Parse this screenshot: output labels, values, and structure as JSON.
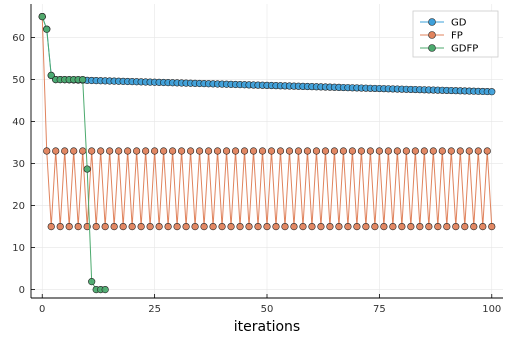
{
  "chart_data": {
    "type": "line",
    "title": "",
    "xlabel": "iterations",
    "ylabel": "",
    "xlim": [
      -2.5,
      102.5
    ],
    "ylim": [
      -2,
      68
    ],
    "xticks": [
      0,
      25,
      50,
      75,
      100
    ],
    "yticks": [
      0,
      10,
      20,
      30,
      40,
      50,
      60
    ],
    "grid": true,
    "legend_position": "top-right",
    "series": [
      {
        "name": "GD",
        "color": "#3ea0da",
        "marker": "circle",
        "x_range": [
          0,
          100
        ],
        "y_values": [
          65,
          62,
          51,
          50,
          50,
          49.97,
          49.94,
          49.91,
          49.88,
          49.85,
          49.82,
          49.79,
          49.76,
          49.73,
          49.7,
          49.67,
          49.64,
          49.61,
          49.58,
          49.55,
          49.52,
          49.49,
          49.46,
          49.43,
          49.4,
          49.37,
          49.34,
          49.31,
          49.28,
          49.25,
          49.22,
          49.19,
          49.16,
          49.13,
          49.1,
          49.07,
          49.04,
          49.01,
          48.98,
          48.95,
          48.92,
          48.89,
          48.86,
          48.83,
          48.8,
          48.77,
          48.74,
          48.71,
          48.68,
          48.65,
          48.62,
          48.59,
          48.56,
          48.53,
          48.5,
          48.47,
          48.44,
          48.41,
          48.38,
          48.35,
          48.32,
          48.29,
          48.26,
          48.23,
          48.2,
          48.17,
          48.14,
          48.11,
          48.08,
          48.05,
          48.02,
          47.99,
          47.96,
          47.93,
          47.9,
          47.87,
          47.84,
          47.81,
          47.78,
          47.75,
          47.72,
          47.69,
          47.66,
          47.63,
          47.6,
          47.57,
          47.54,
          47.51,
          47.48,
          47.45,
          47.42,
          47.39,
          47.36,
          47.33,
          47.3,
          47.27,
          47.24,
          47.21,
          47.18,
          47.15,
          47.12
        ]
      },
      {
        "name": "FP",
        "color": "#e0835d",
        "marker": "circle",
        "x_range": [
          0,
          100
        ],
        "pattern": {
          "first": 65,
          "odd": 33,
          "even": 15
        }
      },
      {
        "name": "GDFP",
        "color": "#4caa6e",
        "marker": "circle",
        "x": [
          0,
          1,
          2,
          3,
          4,
          5,
          6,
          7,
          8,
          9,
          10,
          11,
          12,
          13,
          14
        ],
        "y": [
          65,
          62,
          51,
          50,
          50,
          50,
          50,
          50,
          50,
          50,
          28.7,
          1.9,
          0,
          0,
          0
        ]
      }
    ]
  }
}
